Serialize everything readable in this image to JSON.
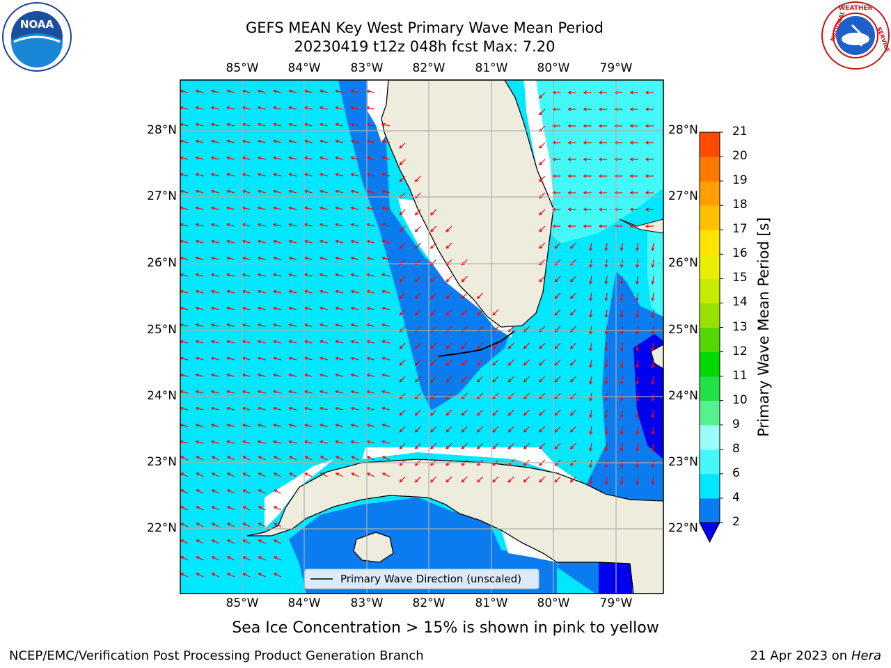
{
  "title": {
    "line1": "GEFS MEAN Key West Primary Wave Mean Period",
    "line2": "20230419 t12z 048h fcst   Max: 7.20"
  },
  "map": {
    "lon_labels": [
      "85°W",
      "84°W",
      "83°W",
      "82°W",
      "81°W",
      "80°W",
      "79°W"
    ],
    "lat_labels": [
      "28°N",
      "27°N",
      "26°N",
      "25°N",
      "24°N",
      "23°N",
      "22°N"
    ],
    "legend_label": "Primary Wave Direction (unscaled)",
    "arrow_color": "#ff0000",
    "land_color": "#eeecdc"
  },
  "colorbar": {
    "title": "Primary Wave Mean Period [s]",
    "levels": [
      "2",
      "4",
      "6",
      "8",
      "9",
      "10",
      "11",
      "12",
      "13",
      "14",
      "15",
      "16",
      "17",
      "18",
      "19",
      "20",
      "21"
    ],
    "colors": [
      "#0a7cf0",
      "#00e7ff",
      "#44f8f8",
      "#99fcf8",
      "#55f090",
      "#22e144",
      "#00d800",
      "#55d800",
      "#99e000",
      "#c6ea00",
      "#e8ef00",
      "#ffe400",
      "#ffc000",
      "#ffa000",
      "#ff7800",
      "#ff4a00",
      "#ff0000"
    ],
    "under_color": "#0000ee"
  },
  "note": "Sea Ice Concentration > 15% is shown in pink to yellow",
  "footer": {
    "left": "NCEP/EMC/Verification Post Processing Product Generation Branch",
    "date": "21 Apr 2023 on ",
    "machine": "Hera"
  },
  "logos": {
    "noaa_text": "NOAA",
    "nws_text": "NATIONAL WEATHER SERVICE"
  }
}
